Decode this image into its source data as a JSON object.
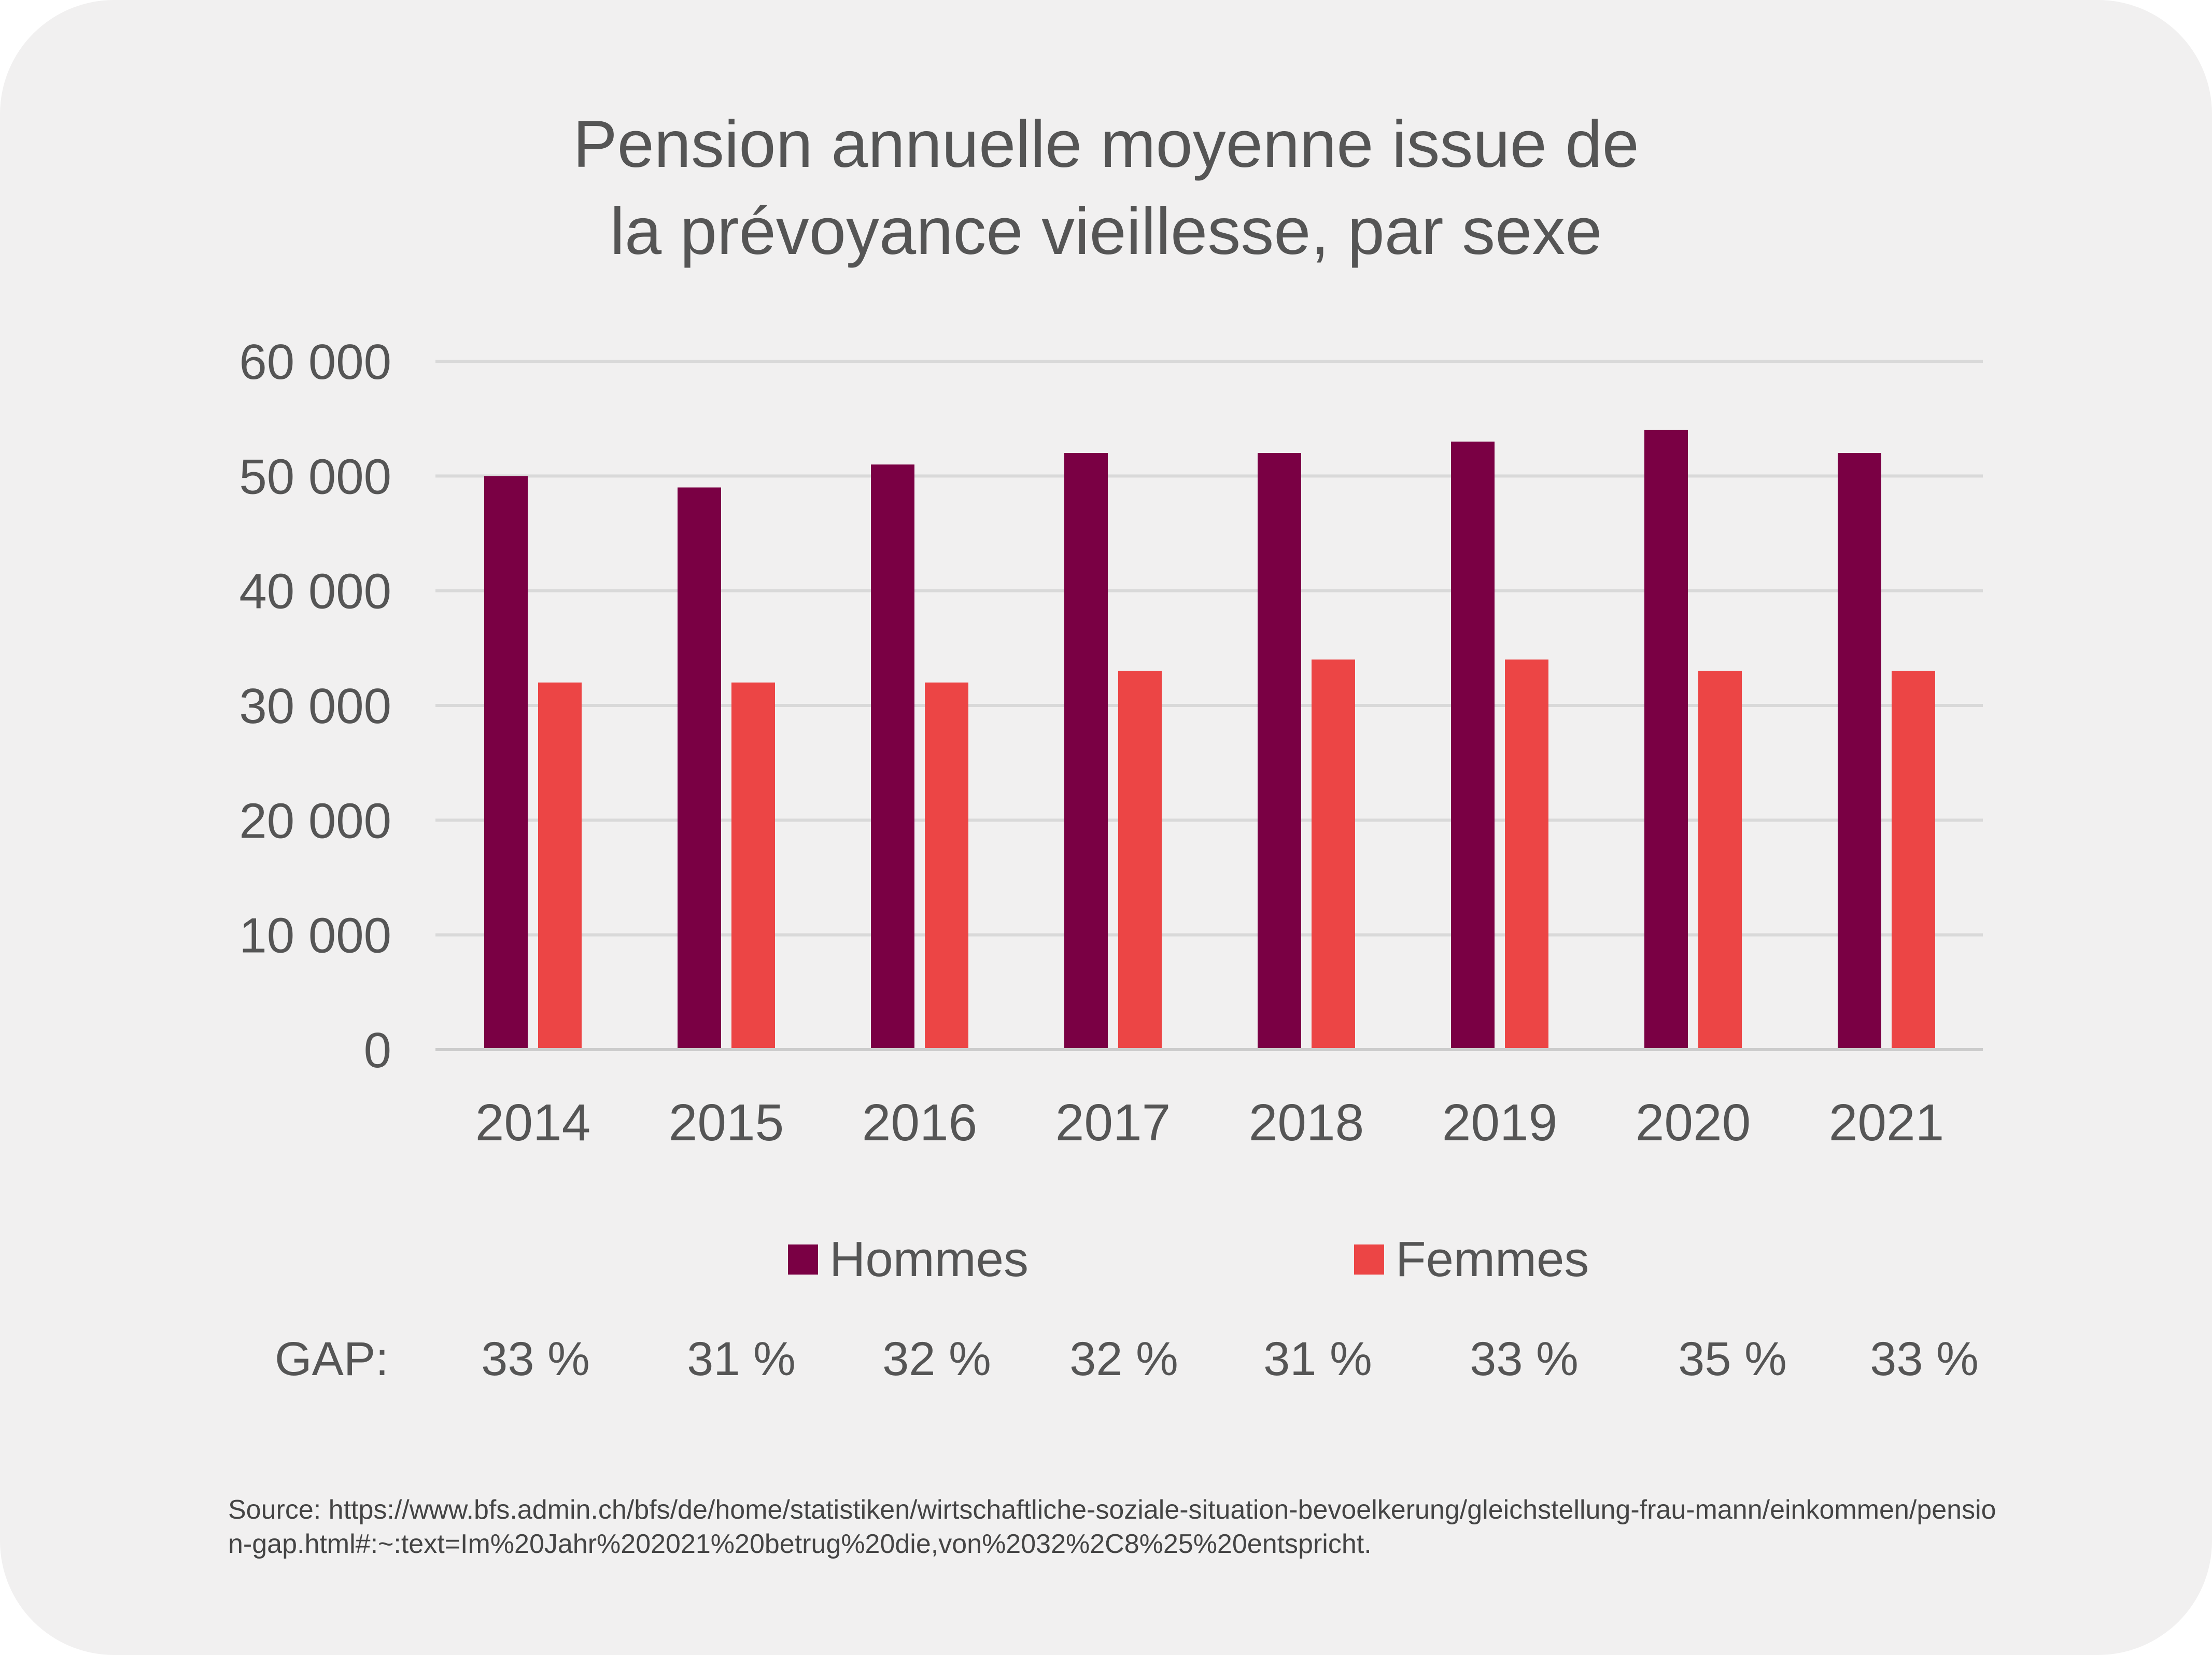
{
  "chart_data": {
    "type": "bar",
    "title": "Pension annuelle moyenne issue de la prévoyance vieillesse, par sexe",
    "title_lines": [
      "Pension annuelle moyenne issue de",
      "la prévoyance vieillesse, par sexe"
    ],
    "categories": [
      "2014",
      "2015",
      "2016",
      "2017",
      "2018",
      "2019",
      "2020",
      "2021"
    ],
    "series": [
      {
        "name": "Hommes",
        "color": "#7a0044",
        "values": [
          50000,
          49000,
          51000,
          52000,
          52000,
          53000,
          54000,
          52000
        ]
      },
      {
        "name": "Femmes",
        "color": "#ec4545",
        "values": [
          32000,
          32000,
          32000,
          33000,
          34000,
          34000,
          33000,
          33000
        ]
      }
    ],
    "ylim": [
      0,
      60000
    ],
    "yticks": [
      0,
      10000,
      20000,
      30000,
      40000,
      50000,
      60000
    ],
    "ytick_labels": [
      "0",
      "10 000",
      "20 000",
      "30 000",
      "40 000",
      "50 000",
      "60 000"
    ],
    "xlabel": "",
    "ylabel": "",
    "grid": true,
    "legend_position": "bottom"
  },
  "gap": {
    "label": "GAP:",
    "values": [
      "33 %",
      "31 %",
      "32 %",
      "32 %",
      "31 %",
      "33 %",
      "35 %",
      "33 %"
    ]
  },
  "source": "Source: https://www.bfs.admin.ch/bfs/de/home/statistiken/wirtschaftliche-soziale-situation-bevoelkerung/gleichstellung-frau-mann/einkommen/pension-gap.html#:~:text=Im%20Jahr%202021%20betrug%20die,von%2032%2C8%25%20entspricht.",
  "colors": {
    "background": "#f1f0f0",
    "text": "#555555",
    "gridline": "#d9d9d9"
  }
}
